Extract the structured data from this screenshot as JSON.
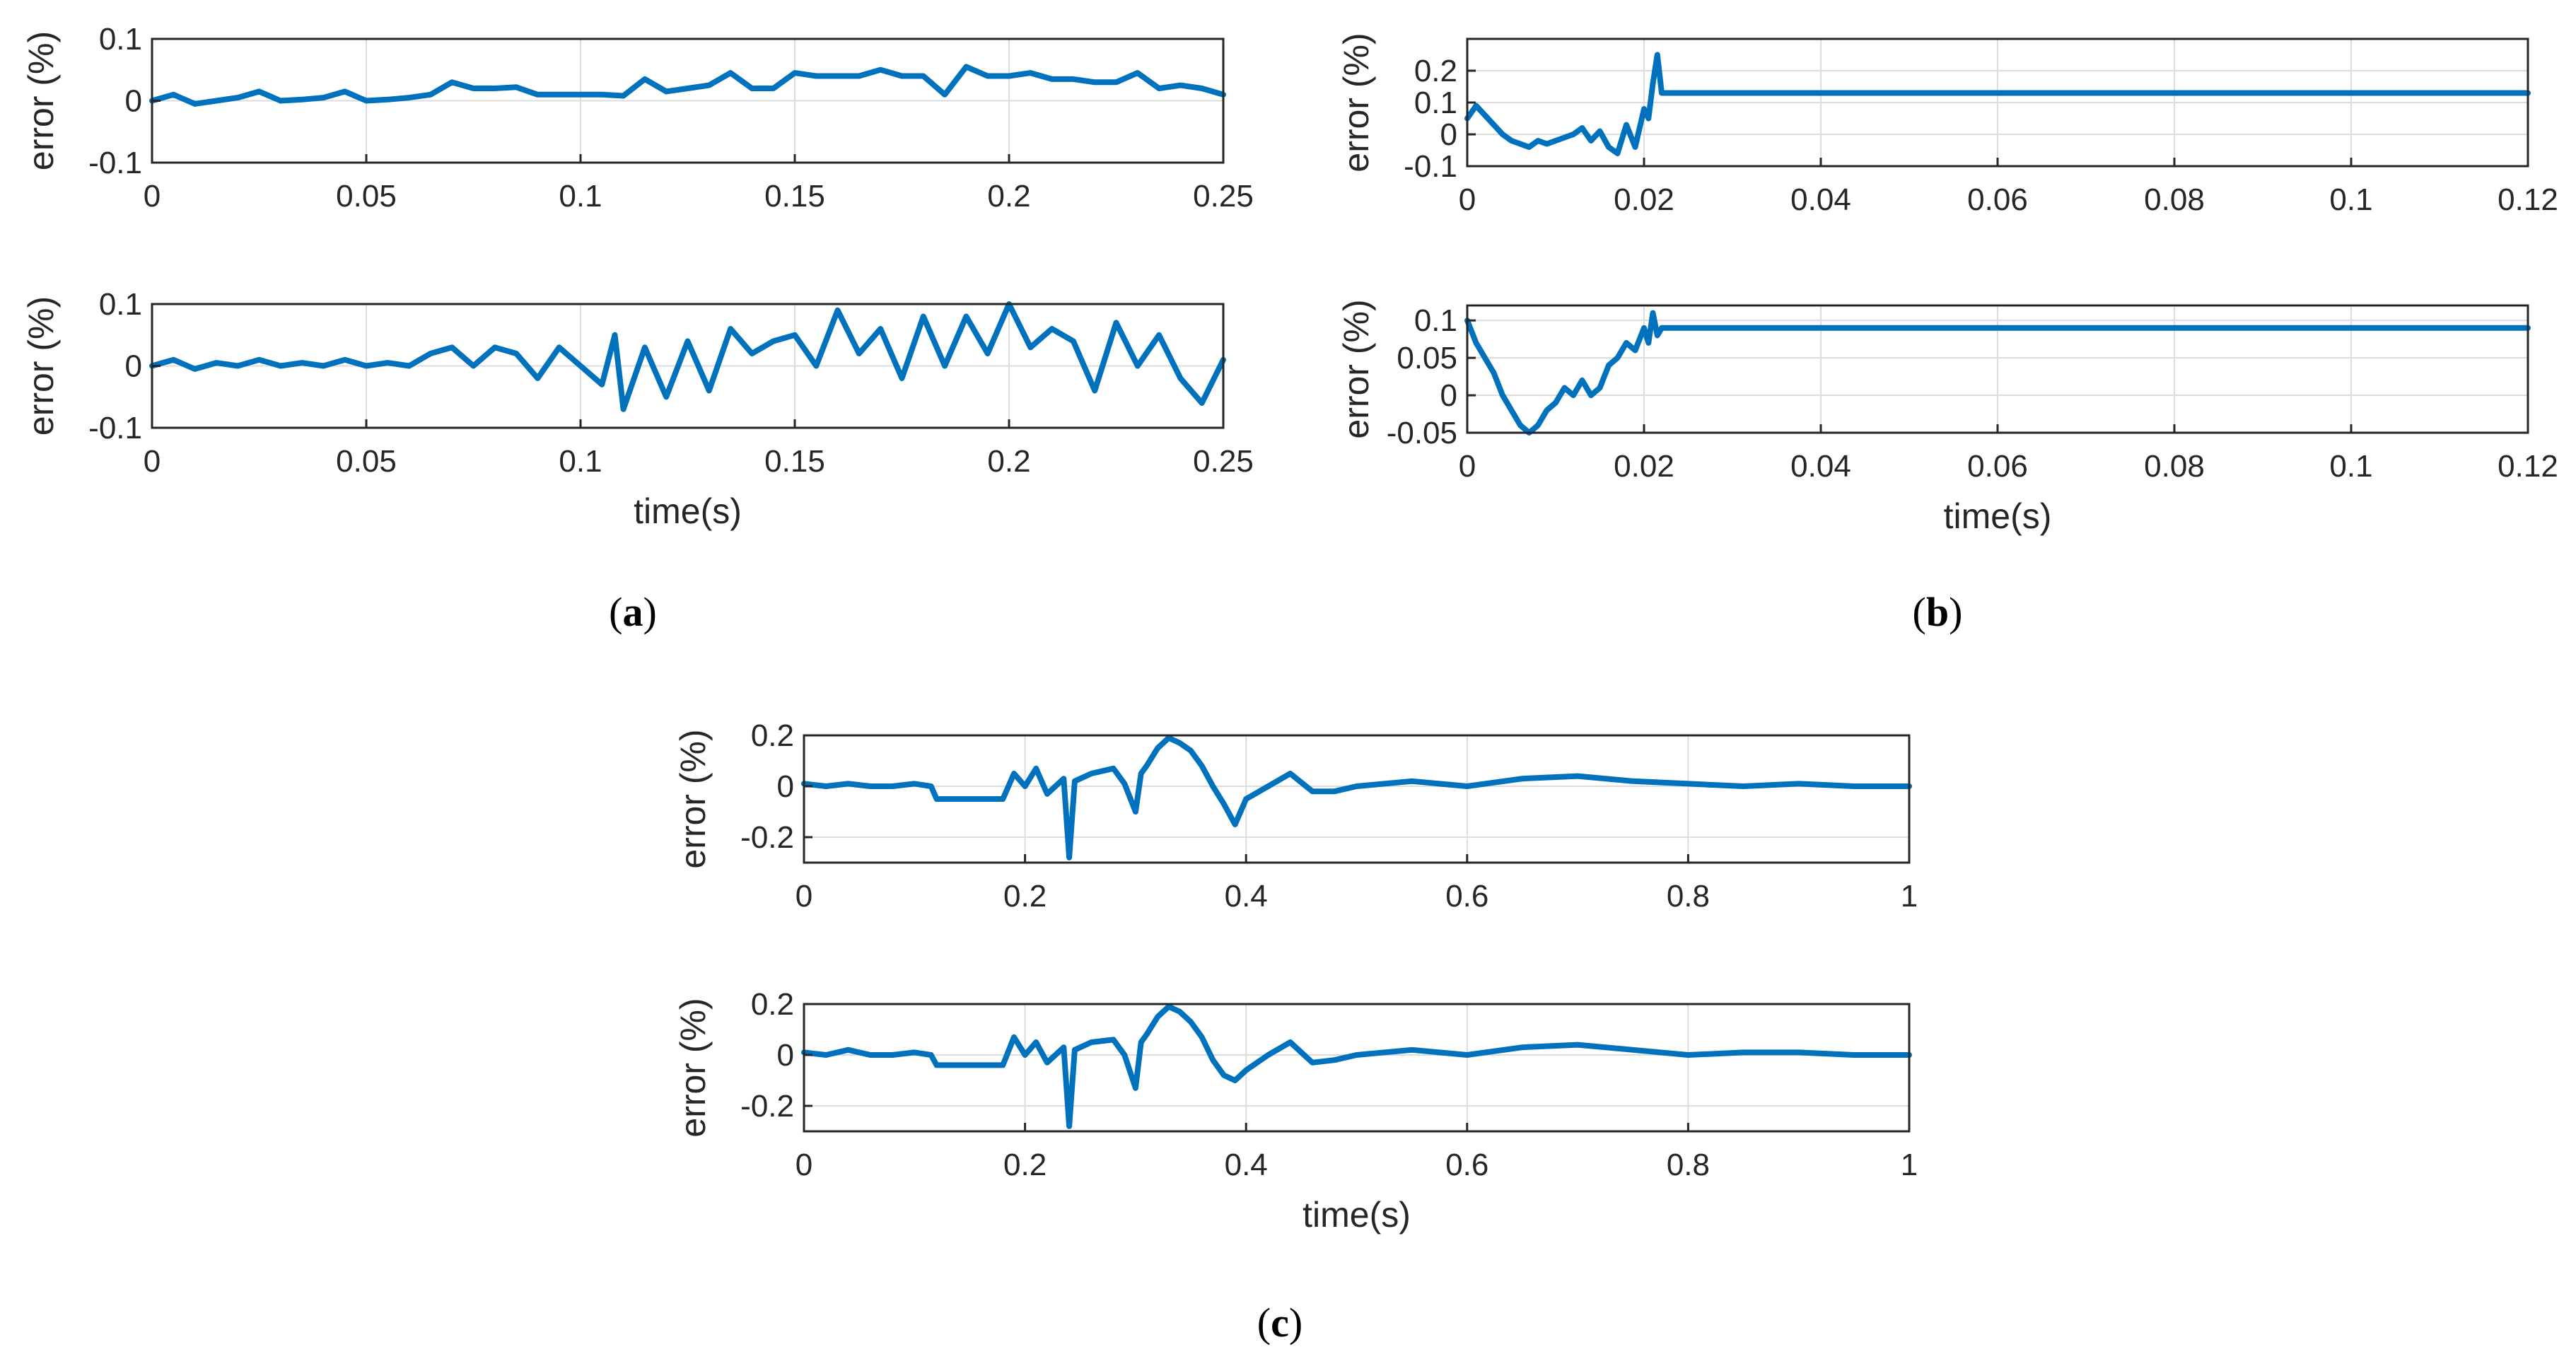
{
  "colors": {
    "series": "#0072BD",
    "axis": "#262626",
    "grid": "#dcdcdc"
  },
  "chart_data": [
    {
      "id": "a1",
      "type": "line",
      "panel": "a",
      "ylabel": "error (%)",
      "xlabel": "",
      "xlim": [
        0,
        0.25
      ],
      "ylim": [
        -0.1,
        0.1
      ],
      "xticks": [
        0,
        0.05,
        0.1,
        0.15,
        0.2,
        0.25
      ],
      "xtick_labels": [
        "0",
        "0.05",
        "0.1",
        "0.15",
        "0.2",
        "0.25"
      ],
      "yticks": [
        -0.1,
        0,
        0.1
      ],
      "ytick_labels": [
        "-0.1",
        "0",
        "0.1"
      ],
      "series": [
        {
          "name": "error",
          "x": [
            0,
            0.005,
            0.01,
            0.015,
            0.02,
            0.025,
            0.03,
            0.035,
            0.04,
            0.045,
            0.05,
            0.055,
            0.06,
            0.065,
            0.07,
            0.075,
            0.08,
            0.085,
            0.09,
            0.095,
            0.1,
            0.105,
            0.11,
            0.115,
            0.12,
            0.125,
            0.13,
            0.135,
            0.14,
            0.145,
            0.15,
            0.155,
            0.16,
            0.165,
            0.17,
            0.175,
            0.18,
            0.185,
            0.19,
            0.195,
            0.2,
            0.205,
            0.21,
            0.215,
            0.22,
            0.225,
            0.23,
            0.235,
            0.24,
            0.245,
            0.25
          ],
          "y": [
            0,
            0.01,
            -0.005,
            0,
            0.005,
            0.015,
            0,
            0.002,
            0.005,
            0.015,
            0,
            0.002,
            0.005,
            0.01,
            0.03,
            0.02,
            0.02,
            0.022,
            0.01,
            0.01,
            0.01,
            0.01,
            0.008,
            0.035,
            0.015,
            0.02,
            0.025,
            0.045,
            0.02,
            0.02,
            0.045,
            0.04,
            0.04,
            0.04,
            0.05,
            0.04,
            0.04,
            0.01,
            0.055,
            0.04,
            0.04,
            0.045,
            0.035,
            0.035,
            0.03,
            0.03,
            0.045,
            0.02,
            0.025,
            0.02,
            0.01
          ]
        }
      ]
    },
    {
      "id": "a2",
      "type": "line",
      "panel": "a",
      "ylabel": "error (%)",
      "xlabel": "time(s)",
      "xlim": [
        0,
        0.25
      ],
      "ylim": [
        -0.1,
        0.1
      ],
      "xticks": [
        0,
        0.05,
        0.1,
        0.15,
        0.2,
        0.25
      ],
      "xtick_labels": [
        "0",
        "0.05",
        "0.1",
        "0.15",
        "0.2",
        "0.25"
      ],
      "yticks": [
        -0.1,
        0,
        0.1
      ],
      "ytick_labels": [
        "-0.1",
        "0",
        "0.1"
      ],
      "series": [
        {
          "name": "error",
          "x": [
            0,
            0.005,
            0.01,
            0.015,
            0.02,
            0.025,
            0.03,
            0.035,
            0.04,
            0.045,
            0.05,
            0.055,
            0.06,
            0.065,
            0.07,
            0.075,
            0.08,
            0.085,
            0.09,
            0.095,
            0.1,
            0.105,
            0.108,
            0.11,
            0.115,
            0.12,
            0.125,
            0.13,
            0.135,
            0.14,
            0.145,
            0.15,
            0.155,
            0.16,
            0.165,
            0.17,
            0.175,
            0.18,
            0.185,
            0.19,
            0.195,
            0.2,
            0.205,
            0.21,
            0.215,
            0.22,
            0.225,
            0.23,
            0.235,
            0.24,
            0.245,
            0.25
          ],
          "y": [
            0,
            0.01,
            -0.005,
            0.005,
            0,
            0.01,
            0,
            0.005,
            0,
            0.01,
            0,
            0.005,
            0,
            0.02,
            0.03,
            0,
            0.03,
            0.02,
            -0.02,
            0.03,
            0,
            -0.03,
            0.05,
            -0.07,
            0.03,
            -0.05,
            0.04,
            -0.04,
            0.06,
            0.02,
            0.04,
            0.05,
            0.0,
            0.09,
            0.02,
            0.06,
            -0.02,
            0.08,
            0,
            0.08,
            0.02,
            0.1,
            0.03,
            0.06,
            0.04,
            -0.04,
            0.07,
            0,
            0.05,
            -0.02,
            -0.06,
            0.01
          ]
        }
      ]
    },
    {
      "id": "b1",
      "type": "line",
      "panel": "b",
      "ylabel": "error (%)",
      "xlabel": "",
      "xlim": [
        0,
        0.12
      ],
      "ylim": [
        -0.1,
        0.3
      ],
      "xticks": [
        0,
        0.02,
        0.04,
        0.06,
        0.08,
        0.1,
        0.12
      ],
      "xtick_labels": [
        "0",
        "0.02",
        "0.04",
        "0.06",
        "0.08",
        "0.1",
        "0.12"
      ],
      "yticks": [
        -0.1,
        0,
        0.1,
        0.2
      ],
      "ytick_labels": [
        "-0.1",
        "0",
        "0.1",
        "0.2"
      ],
      "series": [
        {
          "name": "error",
          "x": [
            0,
            0.001,
            0.002,
            0.003,
            0.004,
            0.005,
            0.006,
            0.007,
            0.008,
            0.009,
            0.01,
            0.011,
            0.012,
            0.013,
            0.014,
            0.015,
            0.016,
            0.017,
            0.018,
            0.019,
            0.02,
            0.0205,
            0.021,
            0.0215,
            0.022,
            0.03,
            0.06,
            0.09,
            0.12
          ],
          "y": [
            0.05,
            0.09,
            0.06,
            0.03,
            0,
            -0.02,
            -0.03,
            -0.04,
            -0.02,
            -0.03,
            -0.02,
            -0.01,
            0.0,
            0.02,
            -0.02,
            0.01,
            -0.04,
            -0.06,
            0.03,
            -0.04,
            0.08,
            0.05,
            0.16,
            0.25,
            0.13,
            0.13,
            0.13,
            0.13,
            0.13
          ]
        }
      ]
    },
    {
      "id": "b2",
      "type": "line",
      "panel": "b",
      "ylabel": "error (%)",
      "xlabel": "time(s)",
      "xlim": [
        0,
        0.12
      ],
      "ylim": [
        -0.05,
        0.12
      ],
      "xticks": [
        0,
        0.02,
        0.04,
        0.06,
        0.08,
        0.1,
        0.12
      ],
      "xtick_labels": [
        "0",
        "0.02",
        "0.04",
        "0.06",
        "0.08",
        "0.1",
        "0.12"
      ],
      "yticks": [
        -0.05,
        0,
        0.05,
        0.1
      ],
      "ytick_labels": [
        "-0.05",
        "0",
        "0.05",
        "0.1"
      ],
      "series": [
        {
          "name": "error",
          "x": [
            0,
            0.001,
            0.002,
            0.003,
            0.004,
            0.005,
            0.006,
            0.007,
            0.008,
            0.009,
            0.01,
            0.011,
            0.012,
            0.013,
            0.014,
            0.015,
            0.016,
            0.017,
            0.018,
            0.019,
            0.02,
            0.0205,
            0.021,
            0.0215,
            0.022,
            0.03,
            0.06,
            0.09,
            0.12
          ],
          "y": [
            0.1,
            0.07,
            0.05,
            0.03,
            0.0,
            -0.02,
            -0.04,
            -0.05,
            -0.04,
            -0.02,
            -0.01,
            0.01,
            0,
            0.02,
            0.0,
            0.01,
            0.04,
            0.05,
            0.07,
            0.06,
            0.09,
            0.07,
            0.11,
            0.08,
            0.09,
            0.09,
            0.09,
            0.09,
            0.09
          ]
        }
      ]
    },
    {
      "id": "c1",
      "type": "line",
      "panel": "c",
      "ylabel": "error (%)",
      "xlabel": "",
      "xlim": [
        0,
        1
      ],
      "ylim": [
        -0.3,
        0.2
      ],
      "xticks": [
        0,
        0.2,
        0.4,
        0.6,
        0.8,
        1
      ],
      "xtick_labels": [
        "0",
        "0.2",
        "0.4",
        "0.6",
        "0.8",
        "1"
      ],
      "yticks": [
        -0.2,
        0,
        0.2
      ],
      "ytick_labels": [
        "-0.2",
        "0",
        "0.2"
      ],
      "series": [
        {
          "name": "error",
          "x": [
            0,
            0.02,
            0.04,
            0.06,
            0.08,
            0.1,
            0.115,
            0.12,
            0.15,
            0.18,
            0.19,
            0.2,
            0.21,
            0.22,
            0.235,
            0.24,
            0.245,
            0.26,
            0.28,
            0.29,
            0.3,
            0.305,
            0.31,
            0.32,
            0.33,
            0.34,
            0.35,
            0.36,
            0.37,
            0.38,
            0.39,
            0.4,
            0.42,
            0.44,
            0.46,
            0.48,
            0.5,
            0.55,
            0.6,
            0.65,
            0.7,
            0.75,
            0.8,
            0.85,
            0.9,
            0.95,
            1
          ],
          "y": [
            0.01,
            0,
            0.01,
            0,
            0,
            0.01,
            0,
            -0.05,
            -0.05,
            -0.05,
            0.05,
            0,
            0.07,
            -0.03,
            0.03,
            -0.28,
            0.02,
            0.05,
            0.07,
            0.01,
            -0.1,
            0.05,
            0.08,
            0.15,
            0.19,
            0.17,
            0.14,
            0.08,
            0.0,
            -0.07,
            -0.15,
            -0.05,
            0.0,
            0.05,
            -0.02,
            -0.02,
            0,
            0.02,
            0.0,
            0.03,
            0.04,
            0.02,
            0.01,
            0.0,
            0.01,
            0.0,
            0.0
          ]
        }
      ]
    },
    {
      "id": "c2",
      "type": "line",
      "panel": "c",
      "ylabel": "error (%)",
      "xlabel": "time(s)",
      "xlim": [
        0,
        1
      ],
      "ylim": [
        -0.3,
        0.2
      ],
      "xticks": [
        0,
        0.2,
        0.4,
        0.6,
        0.8,
        1
      ],
      "xtick_labels": [
        "0",
        "0.2",
        "0.4",
        "0.6",
        "0.8",
        "1"
      ],
      "yticks": [
        -0.2,
        0,
        0.2
      ],
      "ytick_labels": [
        "-0.2",
        "0",
        "0.2"
      ],
      "series": [
        {
          "name": "error",
          "x": [
            0,
            0.02,
            0.04,
            0.06,
            0.08,
            0.1,
            0.115,
            0.12,
            0.15,
            0.18,
            0.19,
            0.2,
            0.21,
            0.22,
            0.235,
            0.24,
            0.245,
            0.26,
            0.28,
            0.29,
            0.3,
            0.305,
            0.31,
            0.32,
            0.33,
            0.34,
            0.35,
            0.36,
            0.37,
            0.38,
            0.39,
            0.4,
            0.42,
            0.44,
            0.46,
            0.48,
            0.5,
            0.55,
            0.6,
            0.65,
            0.7,
            0.75,
            0.8,
            0.85,
            0.9,
            0.95,
            1
          ],
          "y": [
            0.01,
            0,
            0.02,
            0,
            0,
            0.01,
            0,
            -0.04,
            -0.04,
            -0.04,
            0.07,
            0,
            0.05,
            -0.03,
            0.03,
            -0.28,
            0.02,
            0.05,
            0.06,
            0.0,
            -0.13,
            0.05,
            0.08,
            0.15,
            0.19,
            0.17,
            0.13,
            0.07,
            -0.02,
            -0.08,
            -0.1,
            -0.06,
            0.0,
            0.05,
            -0.03,
            -0.02,
            0,
            0.02,
            0.0,
            0.03,
            0.04,
            0.02,
            0.0,
            0.01,
            0.01,
            0.0,
            0.0
          ]
        }
      ]
    }
  ],
  "captions": [
    {
      "panel": "a",
      "open": "(",
      "letter": "a",
      "close": ")"
    },
    {
      "panel": "b",
      "open": "(",
      "letter": "b",
      "close": ")"
    },
    {
      "panel": "c",
      "open": "(",
      "letter": "c",
      "close": ")"
    }
  ]
}
